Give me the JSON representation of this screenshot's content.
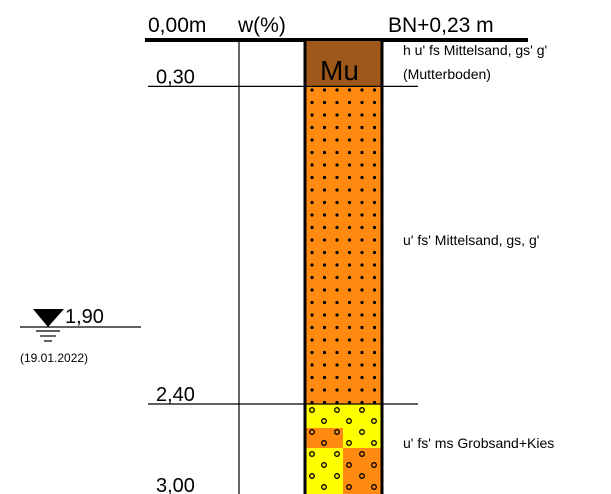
{
  "header": {
    "depth_unit_label": "0,00m",
    "water_content_label": "w(%)",
    "elevation_label": "BN+0,23 m"
  },
  "soil_code": "Mu",
  "layers": [
    {
      "top": 0.0,
      "bottom": 0.3,
      "color": "#a0581a",
      "pattern": "none",
      "description": [
        "h u' fs Mittelsand, gs' g'",
        "(Mutterboden)"
      ]
    },
    {
      "top": 0.3,
      "bottom": 2.4,
      "color": "#ff8a0f",
      "pattern": "dots",
      "description": [
        "u' fs' Mittelsand, gs, g'"
      ]
    },
    {
      "top": 2.4,
      "bottom": 3.0,
      "color": "#ff8a0f",
      "secondary_color": "#ffff00",
      "pattern": "circles",
      "description": [
        "u' fs' ms Grobsand+Kies"
      ]
    }
  ],
  "depth_labels": [
    {
      "value": 0.3,
      "text": "0,30"
    },
    {
      "value": 2.4,
      "text": "2,40"
    },
    {
      "value": 3.0,
      "text": "3,00"
    }
  ],
  "groundwater": {
    "depth": 1.9,
    "text": "1,90",
    "date": "(19.01.2022)"
  }
}
